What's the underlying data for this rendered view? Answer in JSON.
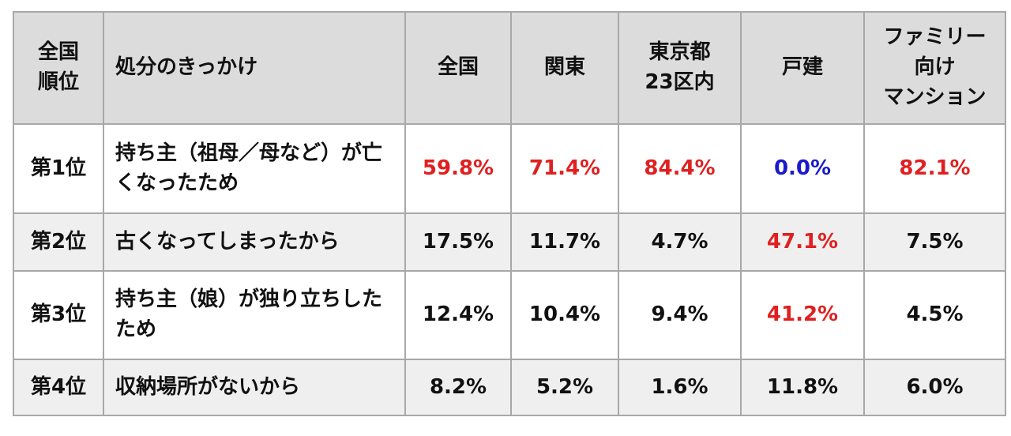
{
  "table": {
    "header": [
      "全国\n順位",
      "処分のきっかけ",
      "全国",
      "関東",
      "東京都\n23区内",
      "戸建",
      "ファミリー\n向け\nマンション"
    ],
    "rows": [
      [
        "第1位",
        "持ち主（祖母／母など）が亡くなったため",
        "59.8%",
        "71.4%",
        "84.4%",
        "0.0%",
        "82.1%"
      ],
      [
        "第2位",
        "古くなってしまったから",
        "17.5%",
        "11.7%",
        "4.7%",
        "47.1%",
        "7.5%"
      ],
      [
        "第3位",
        "持ち主（娘）が独り立ちしたため",
        "12.4%",
        "10.4%",
        "9.4%",
        "41.2%",
        "4.5%"
      ],
      [
        "第4位",
        "収納場所がないから",
        "8.2%",
        "5.2%",
        "1.6%",
        "11.8%",
        "6.0%"
      ]
    ]
  }
}
